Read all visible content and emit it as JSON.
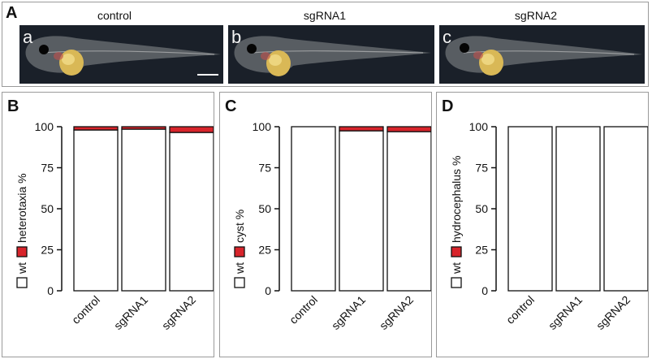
{
  "panel_a": {
    "label": "A",
    "images": [
      {
        "sublabel": "a",
        "title": "control"
      },
      {
        "sublabel": "b",
        "title": "sgRNA1"
      },
      {
        "sublabel": "c",
        "title": "sgRNA2"
      }
    ]
  },
  "colors": {
    "wt": "#ffffff",
    "phenotype": "#d8242b",
    "stroke": "#111111"
  },
  "chart_data": [
    {
      "panel": "B",
      "type": "bar",
      "stacked": true,
      "categories": [
        "control",
        "sgRNA1",
        "sgRNA2"
      ],
      "series": [
        {
          "name": "wt",
          "values": [
            98,
            98.5,
            96.5
          ]
        },
        {
          "name": "heterotaxia",
          "values": [
            2,
            1.5,
            3.5
          ]
        }
      ],
      "ylabel_pre": "wt",
      "ylabel_post": "heterotaxia %",
      "yticks": [
        0,
        25,
        50,
        75,
        100
      ],
      "ylim": [
        0,
        100
      ]
    },
    {
      "panel": "C",
      "type": "bar",
      "stacked": true,
      "categories": [
        "control",
        "sgRNA1",
        "sgRNA2"
      ],
      "series": [
        {
          "name": "wt",
          "values": [
            100,
            97.5,
            97
          ]
        },
        {
          "name": "cyst",
          "values": [
            0,
            2.5,
            3
          ]
        }
      ],
      "ylabel_pre": "wt",
      "ylabel_post": "cyst %",
      "yticks": [
        0,
        25,
        50,
        75,
        100
      ],
      "ylim": [
        0,
        100
      ]
    },
    {
      "panel": "D",
      "type": "bar",
      "stacked": true,
      "categories": [
        "control",
        "sgRNA1",
        "sgRNA2"
      ],
      "series": [
        {
          "name": "wt",
          "values": [
            100,
            100,
            100
          ]
        },
        {
          "name": "hydrocephalus",
          "values": [
            0,
            0,
            0
          ]
        }
      ],
      "ylabel_pre": "wt",
      "ylabel_post": "hydrocephalus %",
      "yticks": [
        0,
        25,
        50,
        75,
        100
      ],
      "ylim": [
        0,
        100
      ]
    }
  ]
}
